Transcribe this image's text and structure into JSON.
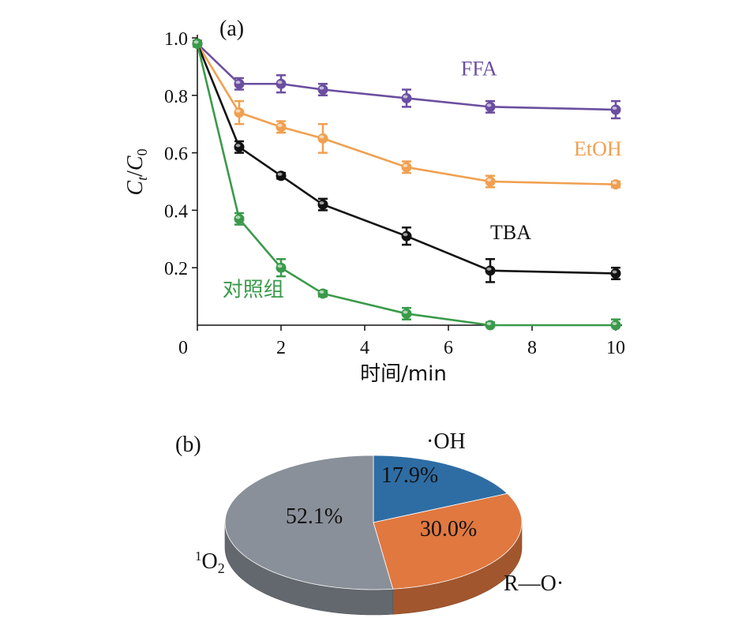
{
  "chart_data": [
    {
      "type": "line",
      "panel_label": "(a)",
      "xlabel": "时间/min",
      "ylabel_parts": {
        "main": "C",
        "main_sub": "t",
        "slash": "/",
        "denom": "C",
        "denom_sub": "0"
      },
      "xlim": [
        0,
        10
      ],
      "ylim": [
        0,
        1.0
      ],
      "xticks": [
        "0",
        "2",
        "4",
        "6",
        "8",
        "10"
      ],
      "xtick_values": [
        0,
        2,
        4,
        6,
        8,
        10
      ],
      "yticks": [
        "0.2",
        "0.4",
        "0.6",
        "0.8",
        "1.0"
      ],
      "ytick_values": [
        0.2,
        0.4,
        0.6,
        0.8,
        1.0
      ],
      "grid": false,
      "series": [
        {
          "name": "FFA",
          "color": "#6b4ea0",
          "x": [
            0,
            1,
            2,
            3,
            5,
            7,
            10
          ],
          "y": [
            0.98,
            0.84,
            0.84,
            0.82,
            0.79,
            0.76,
            0.75
          ],
          "err": [
            0.01,
            0.02,
            0.03,
            0.02,
            0.03,
            0.02,
            0.03
          ],
          "label_at": [
            6.3,
            0.87
          ]
        },
        {
          "name": "EtOH",
          "color": "#f0a050",
          "x": [
            0,
            1,
            2,
            3,
            5,
            7,
            10
          ],
          "y": [
            0.98,
            0.74,
            0.69,
            0.65,
            0.55,
            0.5,
            0.49
          ],
          "err": [
            0.01,
            0.04,
            0.02,
            0.05,
            0.02,
            0.02,
            0.01
          ],
          "label_at": [
            9.0,
            0.59
          ]
        },
        {
          "name": "TBA",
          "color": "#111111",
          "x": [
            0,
            1,
            2,
            3,
            5,
            7,
            10
          ],
          "y": [
            0.98,
            0.62,
            0.52,
            0.42,
            0.31,
            0.19,
            0.18
          ],
          "err": [
            0.01,
            0.02,
            0.01,
            0.02,
            0.03,
            0.04,
            0.02
          ],
          "label_at": [
            7.0,
            0.3
          ]
        },
        {
          "name": "对照组",
          "color": "#3a9a4a",
          "x": [
            0,
            1,
            2,
            3,
            5,
            7,
            10
          ],
          "y": [
            0.98,
            0.37,
            0.2,
            0.11,
            0.04,
            0.0,
            0.0
          ],
          "err": [
            0.01,
            0.02,
            0.03,
            0.01,
            0.02,
            0.01,
            0.02
          ],
          "label_at": [
            0.6,
            0.1
          ]
        }
      ]
    },
    {
      "type": "pie",
      "panel_label": "(b)",
      "slices": [
        {
          "label": "·OH",
          "value": 17.9,
          "value_text": "17.9%",
          "color": "#2e6da4"
        },
        {
          "label": "R—O·",
          "value": 30.0,
          "value_text": "30.0%",
          "color": "#e07840"
        },
        {
          "label_main": "O",
          "label_sup": "1",
          "label_sub": "2",
          "value": 52.1,
          "value_text": "52.1%",
          "color": "#8a9099"
        }
      ],
      "style": "3d"
    }
  ]
}
